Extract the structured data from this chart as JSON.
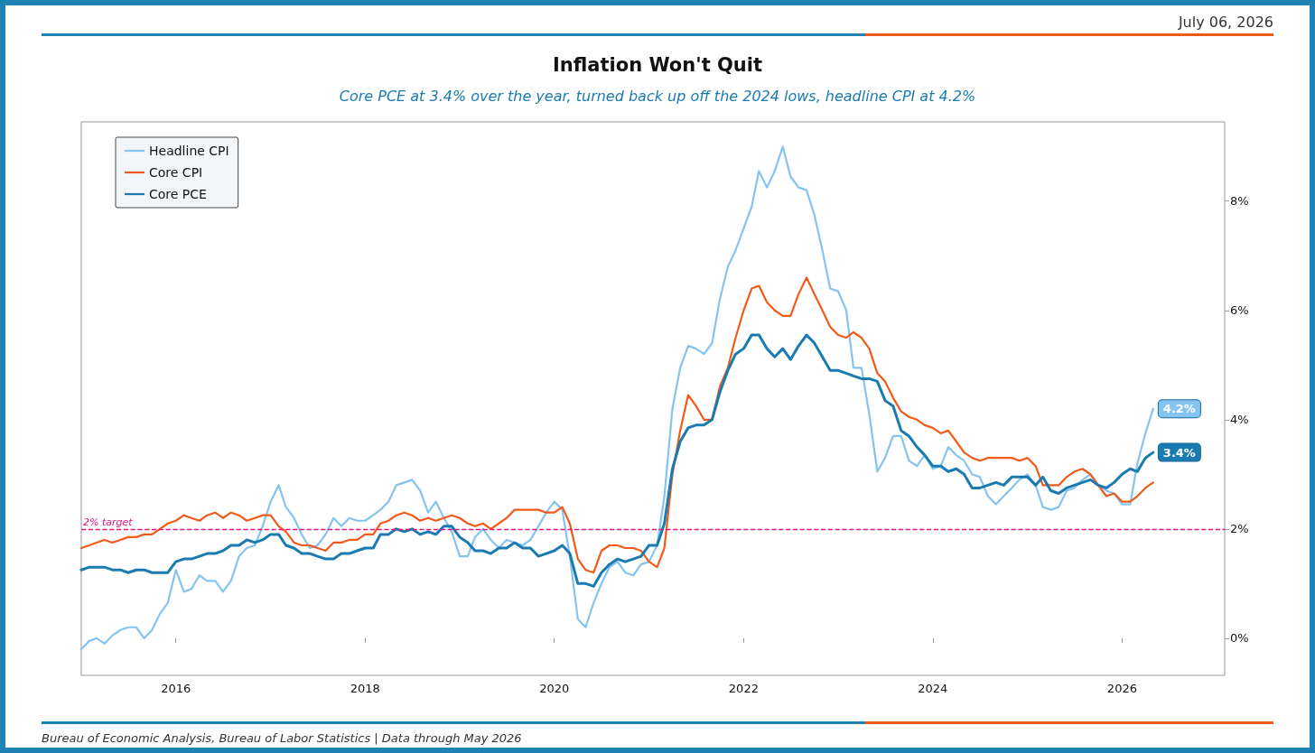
{
  "chart_data": {
    "type": "line",
    "title": "Inflation Won't Quit",
    "subtitle": "Core PCE at 3.4% over the year, turned back up off the 2024 lows, headline CPI at 4.2%",
    "x": [
      "2015-01",
      "2015-02",
      "2015-03",
      "2015-04",
      "2015-05",
      "2015-06",
      "2015-07",
      "2015-08",
      "2015-09",
      "2015-10",
      "2015-11",
      "2015-12",
      "2016-01",
      "2016-02",
      "2016-03",
      "2016-04",
      "2016-05",
      "2016-06",
      "2016-07",
      "2016-08",
      "2016-09",
      "2016-10",
      "2016-11",
      "2016-12",
      "2017-01",
      "2017-02",
      "2017-03",
      "2017-04",
      "2017-05",
      "2017-06",
      "2017-07",
      "2017-08",
      "2017-09",
      "2017-10",
      "2017-11",
      "2017-12",
      "2018-01",
      "2018-02",
      "2018-03",
      "2018-04",
      "2018-05",
      "2018-06",
      "2018-07",
      "2018-08",
      "2018-09",
      "2018-10",
      "2018-11",
      "2018-12",
      "2019-01",
      "2019-02",
      "2019-03",
      "2019-04",
      "2019-05",
      "2019-06",
      "2019-07",
      "2019-08",
      "2019-09",
      "2019-10",
      "2019-11",
      "2019-12",
      "2020-01",
      "2020-02",
      "2020-03",
      "2020-04",
      "2020-05",
      "2020-06",
      "2020-07",
      "2020-08",
      "2020-09",
      "2020-10",
      "2020-11",
      "2020-12",
      "2021-01",
      "2021-02",
      "2021-03",
      "2021-04",
      "2021-05",
      "2021-06",
      "2021-07",
      "2021-08",
      "2021-09",
      "2021-10",
      "2021-11",
      "2021-12",
      "2022-01",
      "2022-02",
      "2022-03",
      "2022-04",
      "2022-05",
      "2022-06",
      "2022-07",
      "2022-08",
      "2022-09",
      "2022-10",
      "2022-11",
      "2022-12",
      "2023-01",
      "2023-02",
      "2023-03",
      "2023-04",
      "2023-05",
      "2023-06",
      "2023-07",
      "2023-08",
      "2023-09",
      "2023-10",
      "2023-11",
      "2023-12",
      "2024-01",
      "2024-02",
      "2024-03",
      "2024-04",
      "2024-05",
      "2024-06",
      "2024-07",
      "2024-08",
      "2024-09",
      "2024-10",
      "2024-11",
      "2024-12",
      "2025-01",
      "2025-02",
      "2025-03",
      "2025-04",
      "2025-05",
      "2025-06",
      "2025-07",
      "2025-08",
      "2025-09",
      "2025-10",
      "2025-11",
      "2025-12",
      "2026-01",
      "2026-02",
      "2026-03",
      "2026-04",
      "2026-05"
    ],
    "series": [
      {
        "name": "Headline CPI",
        "color": "#85c4f0",
        "values": [
          -0.2,
          -0.05,
          0.0,
          -0.1,
          0.05,
          0.15,
          0.2,
          0.2,
          0.0,
          0.15,
          0.45,
          0.65,
          1.25,
          0.85,
          0.9,
          1.15,
          1.05,
          1.05,
          0.85,
          1.05,
          1.5,
          1.65,
          1.7,
          2.05,
          2.5,
          2.8,
          2.4,
          2.2,
          1.9,
          1.65,
          1.7,
          1.9,
          2.2,
          2.05,
          2.2,
          2.15,
          2.15,
          2.25,
          2.35,
          2.5,
          2.8,
          2.85,
          2.9,
          2.7,
          2.3,
          2.5,
          2.2,
          1.95,
          1.5,
          1.5,
          1.85,
          2.0,
          1.8,
          1.65,
          1.8,
          1.75,
          1.7,
          1.8,
          2.05,
          2.3,
          2.5,
          2.35,
          1.5,
          0.35,
          0.2,
          0.65,
          1.0,
          1.3,
          1.4,
          1.2,
          1.15,
          1.35,
          1.4,
          1.7,
          2.6,
          4.2,
          4.95,
          5.35,
          5.3,
          5.2,
          5.4,
          6.2,
          6.8,
          7.1,
          7.5,
          7.9,
          8.55,
          8.25,
          8.55,
          9.0,
          8.45,
          8.25,
          8.2,
          7.75,
          7.1,
          6.4,
          6.35,
          6.0,
          4.95,
          4.95,
          4.1,
          3.05,
          3.3,
          3.7,
          3.7,
          3.25,
          3.15,
          3.35,
          3.1,
          3.15,
          3.5,
          3.35,
          3.25,
          3.0,
          2.95,
          2.6,
          2.45,
          2.6,
          2.75,
          2.9,
          3.0,
          2.8,
          2.4,
          2.35,
          2.4,
          2.7,
          2.75,
          2.9,
          3.0,
          2.8,
          2.7,
          2.65,
          2.45,
          2.45,
          3.2,
          3.75,
          4.2
        ]
      },
      {
        "name": "Core CPI",
        "color": "#f05a1a",
        "values": [
          1.65,
          1.7,
          1.75,
          1.8,
          1.75,
          1.8,
          1.85,
          1.85,
          1.9,
          1.9,
          2.0,
          2.1,
          2.15,
          2.25,
          2.2,
          2.15,
          2.25,
          2.3,
          2.2,
          2.3,
          2.25,
          2.15,
          2.2,
          2.25,
          2.25,
          2.05,
          1.95,
          1.75,
          1.7,
          1.7,
          1.65,
          1.6,
          1.75,
          1.75,
          1.8,
          1.8,
          1.9,
          1.9,
          2.1,
          2.15,
          2.25,
          2.3,
          2.25,
          2.15,
          2.2,
          2.15,
          2.2,
          2.25,
          2.2,
          2.1,
          2.05,
          2.1,
          2.0,
          2.1,
          2.2,
          2.35,
          2.35,
          2.35,
          2.35,
          2.3,
          2.3,
          2.4,
          2.1,
          1.45,
          1.25,
          1.2,
          1.6,
          1.7,
          1.7,
          1.65,
          1.65,
          1.6,
          1.4,
          1.3,
          1.65,
          3.0,
          3.8,
          4.45,
          4.25,
          4.0,
          4.0,
          4.6,
          4.95,
          5.5,
          6.0,
          6.4,
          6.45,
          6.15,
          6.0,
          5.9,
          5.9,
          6.3,
          6.6,
          6.3,
          6.0,
          5.7,
          5.55,
          5.5,
          5.6,
          5.5,
          5.3,
          4.85,
          4.7,
          4.4,
          4.15,
          4.05,
          4.0,
          3.9,
          3.85,
          3.75,
          3.8,
          3.6,
          3.4,
          3.3,
          3.25,
          3.3,
          3.3,
          3.3,
          3.3,
          3.25,
          3.3,
          3.15,
          2.8,
          2.8,
          2.8,
          2.95,
          3.05,
          3.1,
          3.0,
          2.8,
          2.6,
          2.65,
          2.5,
          2.5,
          2.6,
          2.75,
          2.85
        ]
      },
      {
        "name": "Core PCE",
        "color": "#1a7bb0",
        "values": [
          1.25,
          1.3,
          1.3,
          1.3,
          1.25,
          1.25,
          1.2,
          1.25,
          1.25,
          1.2,
          1.2,
          1.2,
          1.4,
          1.45,
          1.45,
          1.5,
          1.55,
          1.55,
          1.6,
          1.7,
          1.7,
          1.8,
          1.75,
          1.8,
          1.9,
          1.9,
          1.7,
          1.65,
          1.55,
          1.55,
          1.5,
          1.45,
          1.45,
          1.55,
          1.55,
          1.6,
          1.65,
          1.65,
          1.9,
          1.9,
          2.0,
          1.95,
          2.0,
          1.9,
          1.95,
          1.9,
          2.05,
          2.05,
          1.85,
          1.75,
          1.6,
          1.6,
          1.55,
          1.65,
          1.65,
          1.75,
          1.65,
          1.65,
          1.5,
          1.55,
          1.6,
          1.7,
          1.55,
          1.0,
          1.0,
          0.95,
          1.2,
          1.35,
          1.45,
          1.4,
          1.45,
          1.5,
          1.7,
          1.7,
          2.1,
          3.1,
          3.6,
          3.85,
          3.9,
          3.9,
          4.0,
          4.5,
          4.9,
          5.2,
          5.3,
          5.55,
          5.55,
          5.3,
          5.15,
          5.3,
          5.1,
          5.35,
          5.55,
          5.4,
          5.15,
          4.9,
          4.9,
          4.85,
          4.8,
          4.75,
          4.75,
          4.7,
          4.35,
          4.25,
          3.8,
          3.7,
          3.5,
          3.35,
          3.15,
          3.15,
          3.05,
          3.1,
          3.0,
          2.75,
          2.75,
          2.8,
          2.85,
          2.8,
          2.95,
          2.95,
          2.95,
          2.8,
          2.95,
          2.7,
          2.65,
          2.75,
          2.8,
          2.85,
          2.9,
          2.8,
          2.75,
          2.85,
          3.0,
          3.1,
          3.05,
          3.3,
          3.4
        ]
      }
    ],
    "xlim": [
      "2015-01",
      "2027-02"
    ],
    "xticks": [
      "2016",
      "2018",
      "2020",
      "2022",
      "2024",
      "2026"
    ],
    "ylim": [
      -0.68,
      9.45
    ],
    "yticks": [
      {
        "value": 0,
        "label": "0%"
      },
      {
        "value": 2,
        "label": "2%"
      },
      {
        "value": 4,
        "label": "4%"
      },
      {
        "value": 6,
        "label": "6%"
      },
      {
        "value": 8,
        "label": "8%"
      }
    ],
    "ref_lines": [
      {
        "axis": "y",
        "value": 2,
        "label": "2% target",
        "color": "#e0157d",
        "line_style": "dashed"
      }
    ],
    "annotations": [
      "July 06, 2026",
      "Bureau of Economic Analysis, Bureau of Labor Statistics | Data through May 2026",
      {
        "text": "4.2%",
        "x": "2026-05",
        "y": 4.2
      },
      {
        "text": "3.4%",
        "x": "2026-05",
        "y": 3.4
      }
    ],
    "legend": "top left",
    "grid": false
  }
}
